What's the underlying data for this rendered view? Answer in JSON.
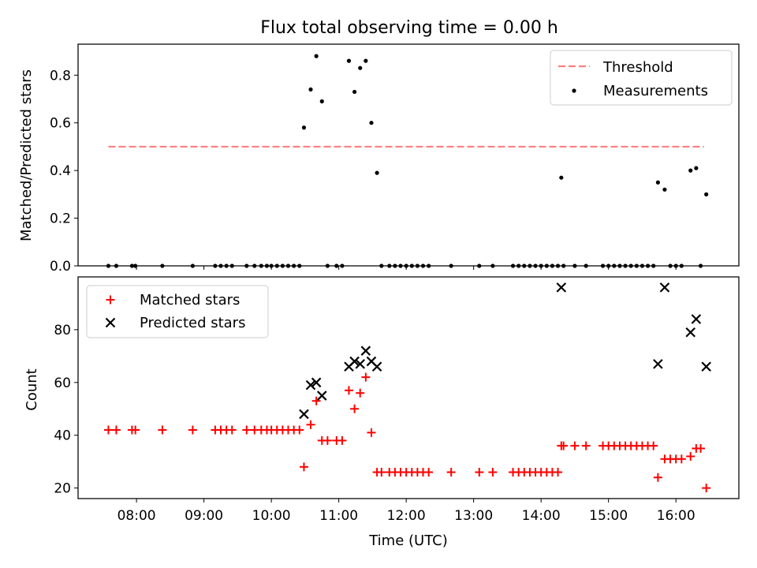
{
  "title": "Flux total observing time = 0.00 h",
  "xlabel": "Time (UTC)",
  "x_ticks": [
    "08:00",
    "09:00",
    "10:00",
    "11:00",
    "12:00",
    "13:00",
    "14:00",
    "15:00",
    "16:00"
  ],
  "colors": {
    "threshold": "#ff7f7f",
    "measurements": "#000000",
    "matched": "#ff0000",
    "predicted": "#000000"
  },
  "chart_data": [
    {
      "type": "scatter",
      "ylabel": "Matched/Predicted stars",
      "ylim": [
        0,
        0.93
      ],
      "y_ticks": [
        "0.0",
        "0.2",
        "0.4",
        "0.6",
        "0.8"
      ],
      "legend": {
        "placement": "top-right",
        "entries": [
          "Threshold",
          "Measurements"
        ]
      },
      "threshold": {
        "name": "Threshold",
        "value": 0.5,
        "x": [
          "07:35",
          "16:25"
        ]
      },
      "series": [
        {
          "name": "Measurements",
          "points": [
            [
              "07:35",
              0.0
            ],
            [
              "07:42",
              0.0
            ],
            [
              "07:56",
              0.0
            ],
            [
              "07:59",
              0.0
            ],
            [
              "08:23",
              0.0
            ],
            [
              "08:50",
              0.0
            ],
            [
              "09:10",
              0.0
            ],
            [
              "09:15",
              0.0
            ],
            [
              "09:20",
              0.0
            ],
            [
              "09:25",
              0.0
            ],
            [
              "09:38",
              0.0
            ],
            [
              "09:45",
              0.0
            ],
            [
              "09:51",
              0.0
            ],
            [
              "09:56",
              0.0
            ],
            [
              "10:00",
              0.0
            ],
            [
              "10:05",
              0.0
            ],
            [
              "10:10",
              0.0
            ],
            [
              "10:15",
              0.0
            ],
            [
              "10:20",
              0.0
            ],
            [
              "10:25",
              0.0
            ],
            [
              "10:29",
              0.58
            ],
            [
              "10:35",
              0.74
            ],
            [
              "10:40",
              0.88
            ],
            [
              "10:45",
              0.69
            ],
            [
              "10:50",
              0.0
            ],
            [
              "10:58",
              0.0
            ],
            [
              "11:03",
              0.0
            ],
            [
              "11:09",
              0.86
            ],
            [
              "11:14",
              0.73
            ],
            [
              "11:19",
              0.83
            ],
            [
              "11:24",
              0.86
            ],
            [
              "11:29",
              0.6
            ],
            [
              "11:34",
              0.39
            ],
            [
              "11:38",
              0.0
            ],
            [
              "11:45",
              0.0
            ],
            [
              "11:50",
              0.0
            ],
            [
              "11:55",
              0.0
            ],
            [
              "12:00",
              0.0
            ],
            [
              "12:05",
              0.0
            ],
            [
              "12:10",
              0.0
            ],
            [
              "12:15",
              0.0
            ],
            [
              "12:20",
              0.0
            ],
            [
              "12:40",
              0.0
            ],
            [
              "13:05",
              0.0
            ],
            [
              "13:17",
              0.0
            ],
            [
              "13:35",
              0.0
            ],
            [
              "13:40",
              0.0
            ],
            [
              "13:45",
              0.0
            ],
            [
              "13:50",
              0.0
            ],
            [
              "13:55",
              0.0
            ],
            [
              "14:00",
              0.0
            ],
            [
              "14:05",
              0.0
            ],
            [
              "14:10",
              0.0
            ],
            [
              "14:15",
              0.0
            ],
            [
              "14:18",
              0.37
            ],
            [
              "14:20",
              0.0
            ],
            [
              "14:30",
              0.0
            ],
            [
              "14:40",
              0.0
            ],
            [
              "14:55",
              0.0
            ],
            [
              "15:00",
              0.0
            ],
            [
              "15:05",
              0.0
            ],
            [
              "15:10",
              0.0
            ],
            [
              "15:15",
              0.0
            ],
            [
              "15:20",
              0.0
            ],
            [
              "15:25",
              0.0
            ],
            [
              "15:30",
              0.0
            ],
            [
              "15:35",
              0.0
            ],
            [
              "15:40",
              0.0
            ],
            [
              "15:44",
              0.35
            ],
            [
              "15:50",
              0.32
            ],
            [
              "15:55",
              0.0
            ],
            [
              "16:00",
              0.0
            ],
            [
              "16:05",
              0.0
            ],
            [
              "16:13",
              0.4
            ],
            [
              "16:18",
              0.41
            ],
            [
              "16:22",
              0.0
            ],
            [
              "16:27",
              0.3
            ]
          ]
        }
      ]
    },
    {
      "type": "scatter",
      "ylabel": "Count",
      "ylim": [
        16,
        100
      ],
      "y_ticks": [
        "20",
        "40",
        "60",
        "80"
      ],
      "legend": {
        "placement": "top-left",
        "entries": [
          "Matched stars",
          "Predicted stars"
        ]
      },
      "series": [
        {
          "name": "Matched stars",
          "marker": "plus",
          "points": [
            [
              "07:35",
              42
            ],
            [
              "07:42",
              42
            ],
            [
              "07:56",
              42
            ],
            [
              "07:59",
              42
            ],
            [
              "08:23",
              42
            ],
            [
              "08:50",
              42
            ],
            [
              "09:10",
              42
            ],
            [
              "09:15",
              42
            ],
            [
              "09:20",
              42
            ],
            [
              "09:25",
              42
            ],
            [
              "09:38",
              42
            ],
            [
              "09:45",
              42
            ],
            [
              "09:51",
              42
            ],
            [
              "09:56",
              42
            ],
            [
              "10:00",
              42
            ],
            [
              "10:05",
              42
            ],
            [
              "10:10",
              42
            ],
            [
              "10:15",
              42
            ],
            [
              "10:20",
              42
            ],
            [
              "10:25",
              42
            ],
            [
              "10:29",
              28
            ],
            [
              "10:35",
              44
            ],
            [
              "10:40",
              53
            ],
            [
              "10:45",
              38
            ],
            [
              "10:50",
              38
            ],
            [
              "10:58",
              38
            ],
            [
              "11:03",
              38
            ],
            [
              "11:09",
              57
            ],
            [
              "11:14",
              50
            ],
            [
              "11:19",
              56
            ],
            [
              "11:24",
              62
            ],
            [
              "11:29",
              41
            ],
            [
              "11:34",
              26
            ],
            [
              "11:38",
              26
            ],
            [
              "11:45",
              26
            ],
            [
              "11:50",
              26
            ],
            [
              "11:55",
              26
            ],
            [
              "12:00",
              26
            ],
            [
              "12:05",
              26
            ],
            [
              "12:10",
              26
            ],
            [
              "12:15",
              26
            ],
            [
              "12:20",
              26
            ],
            [
              "12:40",
              26
            ],
            [
              "13:05",
              26
            ],
            [
              "13:17",
              26
            ],
            [
              "13:35",
              26
            ],
            [
              "13:40",
              26
            ],
            [
              "13:45",
              26
            ],
            [
              "13:50",
              26
            ],
            [
              "13:55",
              26
            ],
            [
              "14:00",
              26
            ],
            [
              "14:05",
              26
            ],
            [
              "14:10",
              26
            ],
            [
              "14:15",
              26
            ],
            [
              "14:18",
              36
            ],
            [
              "14:20",
              36
            ],
            [
              "14:30",
              36
            ],
            [
              "14:40",
              36
            ],
            [
              "14:55",
              36
            ],
            [
              "15:00",
              36
            ],
            [
              "15:05",
              36
            ],
            [
              "15:10",
              36
            ],
            [
              "15:15",
              36
            ],
            [
              "15:20",
              36
            ],
            [
              "15:25",
              36
            ],
            [
              "15:30",
              36
            ],
            [
              "15:35",
              36
            ],
            [
              "15:40",
              36
            ],
            [
              "15:44",
              24
            ],
            [
              "15:50",
              31
            ],
            [
              "15:55",
              31
            ],
            [
              "16:00",
              31
            ],
            [
              "16:05",
              31
            ],
            [
              "16:13",
              32
            ],
            [
              "16:18",
              35
            ],
            [
              "16:22",
              35
            ],
            [
              "16:27",
              20
            ]
          ]
        },
        {
          "name": "Predicted stars",
          "marker": "x",
          "points": [
            [
              "10:29",
              48
            ],
            [
              "10:35",
              59
            ],
            [
              "10:40",
              60
            ],
            [
              "10:45",
              55
            ],
            [
              "11:09",
              66
            ],
            [
              "11:14",
              68
            ],
            [
              "11:19",
              67
            ],
            [
              "11:24",
              72
            ],
            [
              "11:29",
              68
            ],
            [
              "11:34",
              66
            ],
            [
              "14:18",
              96
            ],
            [
              "15:44",
              67
            ],
            [
              "15:50",
              96
            ],
            [
              "16:13",
              79
            ],
            [
              "16:18",
              84
            ],
            [
              "16:27",
              66
            ]
          ]
        }
      ]
    }
  ]
}
